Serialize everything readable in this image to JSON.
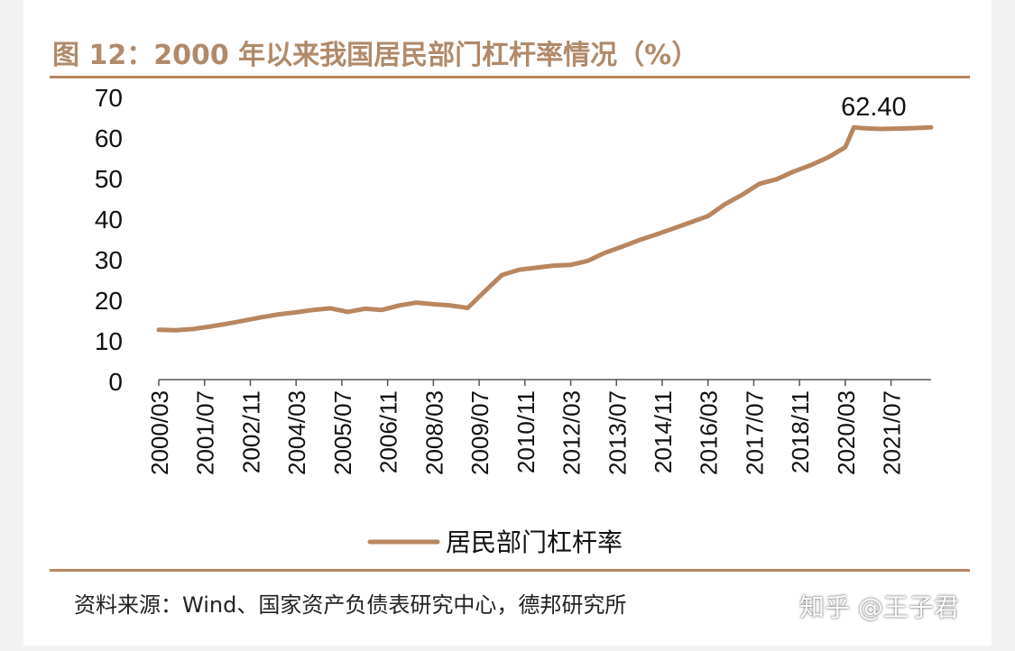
{
  "figure": {
    "title": "图 12：2000 年以来我国居民部门杠杆率情况（%）",
    "source": "资料来源：Wind、国家资产负债表研究中心，德邦研究所",
    "watermark": "知乎 @王子君"
  },
  "colors": {
    "series": "#b8865f",
    "rule": "#b8865f",
    "title": "#b08a6a"
  },
  "chart_data": {
    "type": "line",
    "title": "图 12：2000 年以来我国居民部门杠杆率情况（%）",
    "xlabel": "",
    "ylabel": "",
    "ylim": [
      0,
      70
    ],
    "y_ticks": [
      0,
      10,
      20,
      30,
      40,
      50,
      60,
      70
    ],
    "x_tick_labels": [
      "2000/03",
      "2001/07",
      "2002/11",
      "2004/03",
      "2005/07",
      "2006/11",
      "2008/03",
      "2009/07",
      "2010/11",
      "2012/03",
      "2013/07",
      "2014/11",
      "2016/03",
      "2017/07",
      "2018/11",
      "2020/03",
      "2021/07"
    ],
    "grid": false,
    "legend_position": "bottom",
    "annotation": {
      "label": "62.40",
      "x": "2020/06"
    },
    "series": [
      {
        "name": "居民部门杠杆率",
        "x": [
          "2000/03",
          "2000/09",
          "2001/03",
          "2001/09",
          "2002/03",
          "2002/09",
          "2003/03",
          "2003/09",
          "2004/03",
          "2004/09",
          "2005/03",
          "2005/09",
          "2006/03",
          "2006/09",
          "2007/03",
          "2007/09",
          "2008/03",
          "2008/09",
          "2009/03",
          "2009/09",
          "2010/03",
          "2010/09",
          "2011/03",
          "2011/09",
          "2012/03",
          "2012/09",
          "2013/03",
          "2013/09",
          "2014/03",
          "2014/09",
          "2015/03",
          "2015/09",
          "2016/03",
          "2016/09",
          "2017/03",
          "2017/09",
          "2018/03",
          "2018/09",
          "2019/03",
          "2019/09",
          "2020/03",
          "2020/06",
          "2020/09",
          "2021/03",
          "2021/09",
          "2022/03",
          "2022/09"
        ],
        "values": [
          12.5,
          12.4,
          12.7,
          13.3,
          14.0,
          14.8,
          15.6,
          16.3,
          16.8,
          17.4,
          17.8,
          16.9,
          17.7,
          17.4,
          18.5,
          19.2,
          18.8,
          18.5,
          17.9,
          22.0,
          26.0,
          27.3,
          27.8,
          28.3,
          28.5,
          29.5,
          31.5,
          33.0,
          34.6,
          36.0,
          37.5,
          39.0,
          40.5,
          43.5,
          45.8,
          48.5,
          49.6,
          51.5,
          53.1,
          55.0,
          57.5,
          62.4,
          62.2,
          62.0,
          62.1,
          62.2,
          62.4
        ]
      }
    ]
  }
}
